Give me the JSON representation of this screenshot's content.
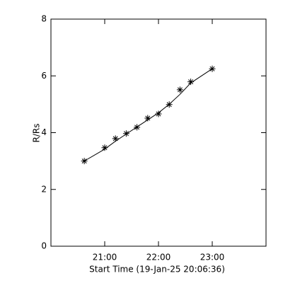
{
  "chart_data": {
    "type": "scatter",
    "xlabel": "Start Time (19-Jan-25 20:06:36)",
    "ylabel": "R/Rs",
    "x": [
      20.62,
      21.0,
      21.2,
      21.4,
      21.6,
      21.8,
      22.0,
      22.2,
      22.4,
      22.6,
      23.0
    ],
    "series": [
      {
        "color": "#000000",
        "mode": "markers",
        "values": [
          3.0,
          3.47,
          3.79,
          3.97,
          4.19,
          4.51,
          4.66,
          4.99,
          5.51,
          5.79,
          6.25
        ]
      },
      {
        "color": "#000000",
        "mode": "lines",
        "values": [
          3.0,
          3.42,
          3.7,
          3.95,
          4.2,
          4.45,
          4.7,
          5.0,
          5.35,
          5.75,
          6.25
        ]
      }
    ],
    "xlim": [
      20,
      24
    ],
    "xticks": [
      {
        "value": 21,
        "label": "21:00"
      },
      {
        "value": 22,
        "label": "22:00"
      },
      {
        "value": 23,
        "label": "23:00"
      }
    ],
    "ylim": [
      0,
      8
    ],
    "yticks": [
      0,
      2,
      4,
      6,
      8
    ]
  }
}
